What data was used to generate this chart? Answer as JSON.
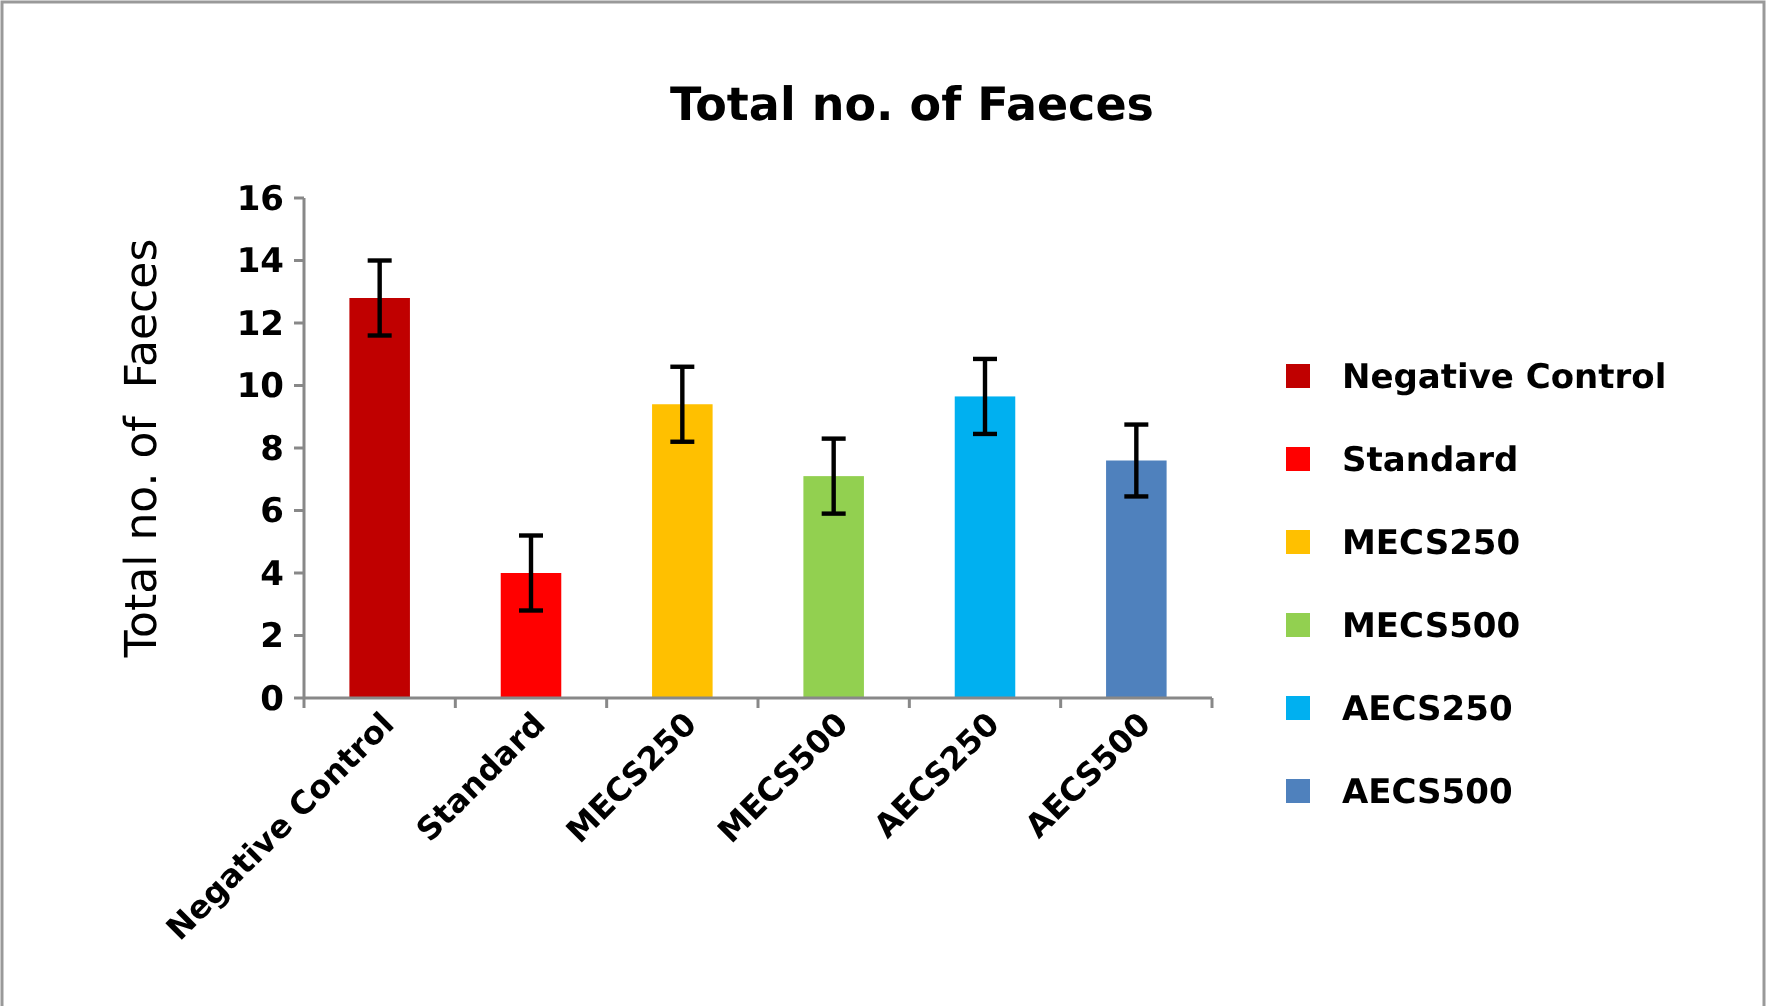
{
  "chart_data": {
    "type": "bar",
    "title": "Total no. of Faeces",
    "ylabel": "Total no. of  Faeces",
    "categories": [
      "Negative Control",
      "Standard",
      "MECS250",
      "MECS500",
      "AECS250",
      "AECS500"
    ],
    "series": [
      {
        "name": "Negative Control",
        "color": "#c00000",
        "values": [
          12.8,
          null,
          null,
          null,
          null,
          null
        ],
        "errors": [
          1.2,
          null,
          null,
          null,
          null,
          null
        ]
      },
      {
        "name": "Standard",
        "color": "#ff0000",
        "values": [
          null,
          4.0,
          null,
          null,
          null,
          null
        ],
        "errors": [
          null,
          1.2,
          null,
          null,
          null,
          null
        ]
      },
      {
        "name": "MECS250",
        "color": "#ffc000",
        "values": [
          null,
          null,
          9.4,
          null,
          null,
          null
        ],
        "errors": [
          null,
          null,
          1.2,
          null,
          null,
          null
        ]
      },
      {
        "name": "MECS500",
        "color": "#92d050",
        "values": [
          null,
          null,
          null,
          7.1,
          null,
          null
        ],
        "errors": [
          null,
          null,
          null,
          1.2,
          null,
          null
        ]
      },
      {
        "name": "AECS250",
        "color": "#00b0f0",
        "values": [
          null,
          null,
          null,
          null,
          9.65,
          null
        ],
        "errors": [
          null,
          null,
          null,
          null,
          1.2,
          null
        ]
      },
      {
        "name": "AECS500",
        "color": "#4f81bd",
        "values": [
          null,
          null,
          null,
          null,
          null,
          7.6
        ],
        "errors": [
          null,
          null,
          null,
          null,
          null,
          1.15
        ]
      }
    ],
    "ylim": [
      0,
      16
    ],
    "yticks": [
      0,
      2,
      4,
      6,
      8,
      10,
      12,
      14,
      16
    ],
    "legend": "right"
  }
}
